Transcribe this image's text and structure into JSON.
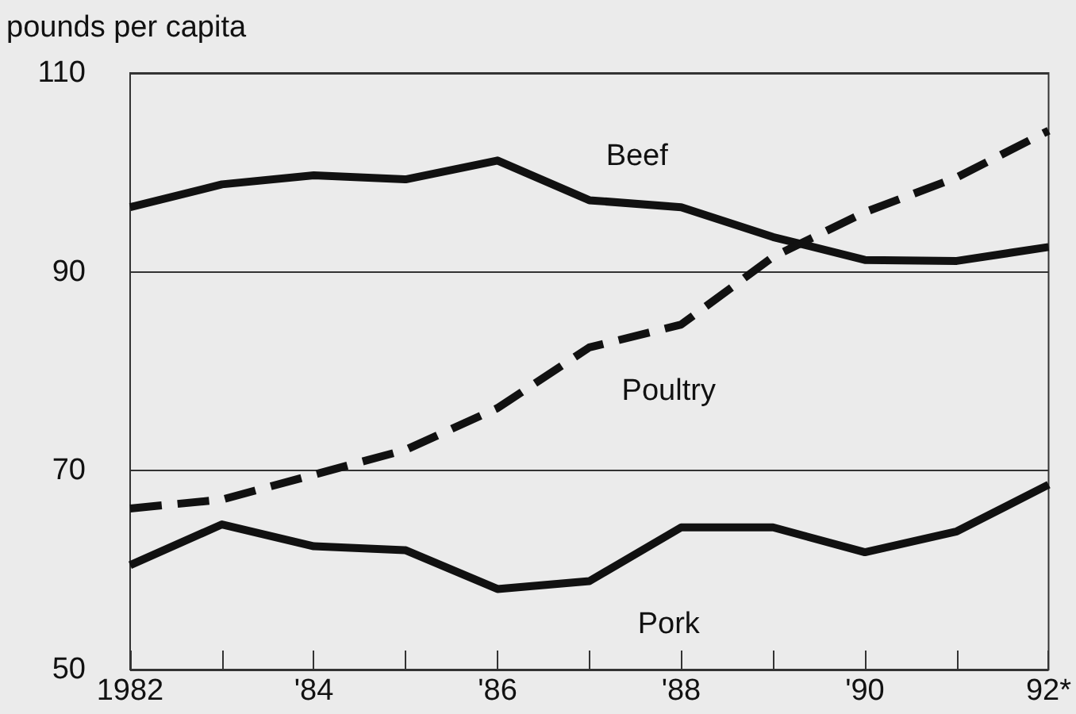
{
  "chart_data": {
    "type": "line",
    "ylabel": "pounds per capita",
    "categories": [
      "1982",
      null,
      "'84",
      null,
      "'86",
      null,
      "'88",
      null,
      "'90",
      null,
      "92*"
    ],
    "series": [
      {
        "name": "Beef",
        "color": "#111111",
        "line_style": "solid",
        "values": [
          96.5,
          98.8,
          99.7,
          99.3,
          101.2,
          97.2,
          96.5,
          93.5,
          91.2,
          91.1,
          92.5
        ]
      },
      {
        "name": "Poultry",
        "color": "#111111",
        "line_style": "dashed",
        "values": [
          66.2,
          67.1,
          69.6,
          72.1,
          76.3,
          82.4,
          84.7,
          91.5,
          96,
          99.5,
          104.2
        ]
      },
      {
        "name": "Pork",
        "color": "#111111",
        "line_style": "solid",
        "values": [
          60.5,
          64.6,
          62.4,
          62,
          58.1,
          58.9,
          64.3,
          64.3,
          61.8,
          63.9,
          68.6
        ]
      }
    ],
    "ylim": [
      50,
      110
    ],
    "yticks": [
      50,
      70,
      90,
      110
    ],
    "grid": "y",
    "marker": "none",
    "legend": false
  }
}
